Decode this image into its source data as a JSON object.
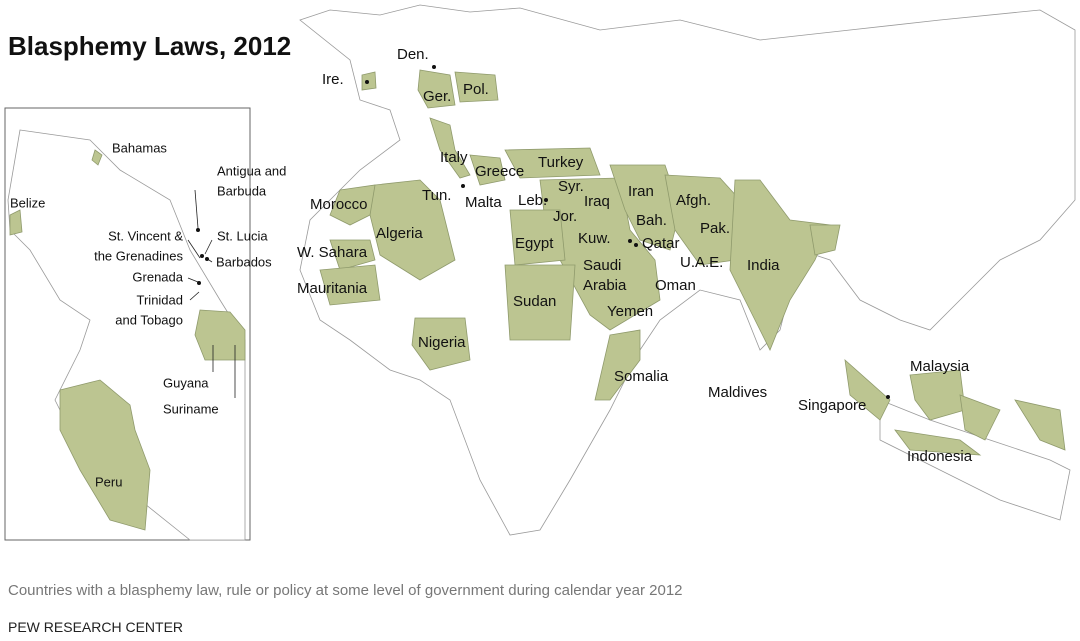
{
  "title": "Blasphemy Laws, 2012",
  "main_map": {
    "labels": [
      [
        "Den."
      ],
      [
        "Ire."
      ],
      [
        "Ger."
      ],
      [
        "Pol."
      ],
      [
        "Italy"
      ],
      [
        "Greece"
      ],
      [
        "Turkey"
      ],
      [
        "Tun."
      ],
      [
        "Malta"
      ],
      [
        "Leb."
      ],
      [
        "Syr."
      ],
      [
        "Iraq"
      ],
      [
        "Iran"
      ],
      [
        "Afgh."
      ],
      [
        "Morocco"
      ],
      [
        "Algeria"
      ],
      [
        "Jor."
      ],
      [
        "Bah."
      ],
      [
        "Pak."
      ],
      [
        "W. Sahara"
      ],
      [
        "Egypt"
      ],
      [
        "Kuw."
      ],
      [
        "Qatar"
      ],
      [
        "U.A.E."
      ],
      [
        "India"
      ],
      [
        "Saudi",
        "Arabia"
      ],
      [
        "Mauritania"
      ],
      [
        "Oman"
      ],
      [
        "Sudan"
      ],
      [
        "Yemen"
      ],
      [
        "Nigeria"
      ],
      [
        "Somalia"
      ],
      [
        "Maldives"
      ],
      [
        "Malaysia"
      ],
      [
        "Singapore"
      ],
      [
        "Indonesia"
      ]
    ]
  },
  "inset_map": {
    "labels": [
      [
        "Bahamas"
      ],
      [
        "Antigua and",
        "Barbuda"
      ],
      [
        "Belize"
      ],
      [
        "St. Vincent &",
        "the Grenadines"
      ],
      [
        "St. Lucia"
      ],
      [
        "Barbados"
      ],
      [
        "Grenada"
      ],
      [
        "Trinidad",
        "and Tobago"
      ],
      [
        "Guyana"
      ],
      [
        "Suriname"
      ],
      [
        "Peru"
      ]
    ]
  },
  "caption": "Countries with a blasphemy law, rule or policy at some level of government during calendar year 2012",
  "source": "PEW RESEARCH CENTER"
}
